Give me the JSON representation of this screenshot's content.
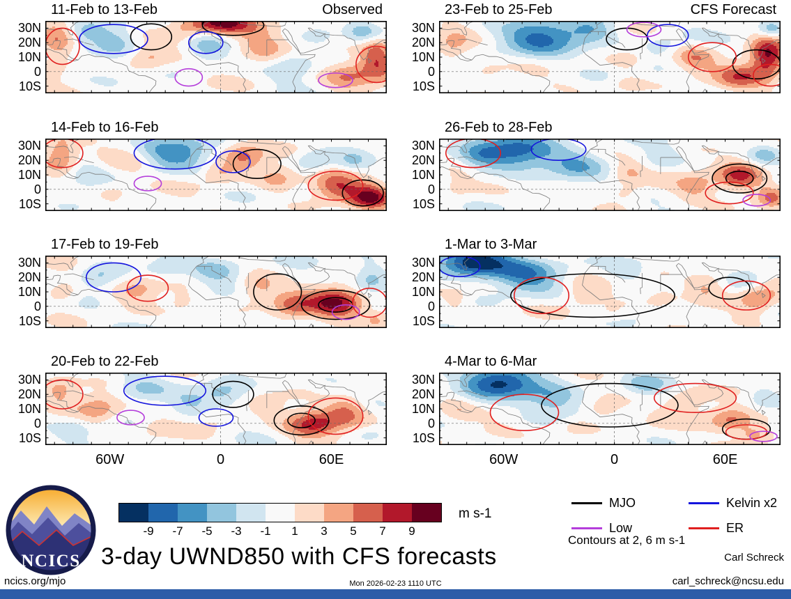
{
  "title": "3-day UWND850 with CFS forecasts",
  "branding": {
    "logo_text": "NCICS",
    "site": "ncics.org/mjo"
  },
  "footer": {
    "left": "ncics.org/mjo",
    "center": "Mon 2026-02-23 1110 UTC",
    "credit_name": "Carl Schreck",
    "credit_email": "carl_schreck@ncsu.edu"
  },
  "notes": {
    "contours": "Contours at 2, 6 m s-1"
  },
  "legend": {
    "items": [
      {
        "label": "MJO",
        "color": "#000000"
      },
      {
        "label": "Kelvin x2",
        "color": "#1414dd"
      },
      {
        "label": "Low",
        "color": "#b43ddb"
      },
      {
        "label": "ER",
        "color": "#e01f1f"
      }
    ]
  },
  "chart_data": {
    "type": "heatmap",
    "title": "3-day UWND850 with CFS forecasts",
    "subtitle_columns": [
      "Observed",
      "CFS Forecast"
    ],
    "axes": {
      "lat_labels": [
        "30N",
        "20N",
        "10N",
        "0",
        "10S"
      ],
      "lat_values": [
        30,
        20,
        10,
        0,
        -10
      ],
      "lon_labels": [
        "60W",
        "0",
        "60E"
      ],
      "lon_values": [
        -60,
        0,
        60
      ],
      "lat_range": [
        -15,
        35
      ],
      "lon_range": [
        -95,
        90
      ]
    },
    "colorbar": {
      "units": "m s-1",
      "levels": [
        -9,
        -7,
        -5,
        -3,
        -1,
        1,
        3,
        5,
        7,
        9
      ],
      "colors": [
        "#053061",
        "#2166ac",
        "#4393c3",
        "#92c5de",
        "#d1e5f0",
        "#f9f9f9",
        "#fddbc7",
        "#f4a582",
        "#d6604d",
        "#b2182b",
        "#67001f"
      ]
    },
    "contour_colors": {
      "M": "#000000",
      "K": "#1414dd",
      "L": "#b43ddb",
      "E": "#e01f1f"
    },
    "columns": [
      {
        "header": "Observed"
      },
      {
        "header": "CFS Forecast"
      }
    ],
    "panels": [
      {
        "title": "11-Feb to 13-Feb",
        "col": 0,
        "row": 0,
        "seed": 1.3,
        "blobs": [
          [
            0.03,
            0.3,
            0.05,
            0.3,
            5
          ],
          [
            0.12,
            0.15,
            0.05,
            0.15,
            -3
          ],
          [
            0.2,
            0.3,
            0.07,
            0.25,
            -4
          ],
          [
            0.3,
            0.5,
            0.06,
            0.2,
            3
          ],
          [
            0.4,
            0.15,
            0.06,
            0.2,
            2
          ],
          [
            0.52,
            0.02,
            0.1,
            0.15,
            9
          ],
          [
            0.47,
            0.35,
            0.05,
            0.2,
            -3
          ],
          [
            0.63,
            0.3,
            0.07,
            0.25,
            4
          ],
          [
            0.72,
            0.6,
            0.06,
            0.2,
            -3
          ],
          [
            0.8,
            0.2,
            0.05,
            0.15,
            -2
          ],
          [
            0.88,
            0.75,
            0.07,
            0.2,
            5
          ],
          [
            0.97,
            0.5,
            0.05,
            0.3,
            7
          ],
          [
            0.93,
            0.15,
            0.05,
            0.15,
            -4
          ]
        ],
        "contours": [
          [
            "M",
            0.31,
            0.22,
            0.06,
            0.18
          ],
          [
            "M",
            0.55,
            0.06,
            0.09,
            0.14
          ],
          [
            "K",
            0.2,
            0.25,
            0.1,
            0.2
          ],
          [
            "K",
            0.47,
            0.3,
            0.05,
            0.15
          ],
          [
            "E",
            0.05,
            0.35,
            0.05,
            0.25
          ],
          [
            "E",
            0.97,
            0.6,
            0.06,
            0.25
          ],
          [
            "L",
            0.42,
            0.78,
            0.04,
            0.12
          ],
          [
            "L",
            0.85,
            0.82,
            0.05,
            0.1
          ]
        ]
      },
      {
        "title": "14-Feb to 16-Feb",
        "col": 0,
        "row": 1,
        "seed": 2.7,
        "blobs": [
          [
            0.04,
            0.2,
            0.05,
            0.25,
            5
          ],
          [
            0.12,
            0.45,
            0.05,
            0.2,
            -2
          ],
          [
            0.25,
            0.3,
            0.06,
            0.2,
            2
          ],
          [
            0.38,
            0.18,
            0.1,
            0.22,
            -6
          ],
          [
            0.5,
            0.45,
            0.05,
            0.15,
            3
          ],
          [
            0.58,
            0.25,
            0.06,
            0.2,
            5
          ],
          [
            0.68,
            0.55,
            0.06,
            0.2,
            4
          ],
          [
            0.78,
            0.3,
            0.05,
            0.15,
            -3
          ],
          [
            0.85,
            0.65,
            0.07,
            0.2,
            6
          ],
          [
            0.95,
            0.8,
            0.06,
            0.18,
            9
          ],
          [
            0.9,
            0.3,
            0.04,
            0.15,
            -2
          ],
          [
            0.2,
            0.75,
            0.05,
            0.15,
            2
          ]
        ],
        "contours": [
          [
            "M",
            0.62,
            0.35,
            0.07,
            0.2
          ],
          [
            "M",
            0.93,
            0.75,
            0.06,
            0.18
          ],
          [
            "K",
            0.38,
            0.2,
            0.12,
            0.22
          ],
          [
            "K",
            0.55,
            0.32,
            0.05,
            0.15
          ],
          [
            "E",
            0.05,
            0.2,
            0.06,
            0.2
          ],
          [
            "E",
            0.85,
            0.65,
            0.08,
            0.2
          ],
          [
            "L",
            0.3,
            0.62,
            0.04,
            0.1
          ]
        ]
      },
      {
        "title": "17-Feb to 19-Feb",
        "col": 0,
        "row": 2,
        "seed": 4.1,
        "blobs": [
          [
            0.05,
            0.5,
            0.05,
            0.2,
            3
          ],
          [
            0.15,
            0.3,
            0.06,
            0.2,
            -3
          ],
          [
            0.27,
            0.45,
            0.06,
            0.2,
            3
          ],
          [
            0.4,
            0.6,
            0.05,
            0.15,
            2
          ],
          [
            0.5,
            0.2,
            0.08,
            0.2,
            -4
          ],
          [
            0.62,
            0.45,
            0.06,
            0.2,
            4
          ],
          [
            0.72,
            0.7,
            0.06,
            0.2,
            5
          ],
          [
            0.85,
            0.65,
            0.08,
            0.22,
            9
          ],
          [
            0.95,
            0.3,
            0.05,
            0.2,
            -4
          ],
          [
            0.35,
            0.15,
            0.05,
            0.15,
            -2
          ],
          [
            0.97,
            0.85,
            0.04,
            0.12,
            3
          ]
        ],
        "contours": [
          [
            "M",
            0.68,
            0.5,
            0.07,
            0.25
          ],
          [
            "M",
            0.85,
            0.68,
            0.1,
            0.2,
            1
          ],
          [
            "K",
            0.2,
            0.3,
            0.08,
            0.2
          ],
          [
            "E",
            0.3,
            0.45,
            0.06,
            0.18
          ],
          [
            "E",
            0.95,
            0.65,
            0.05,
            0.2
          ],
          [
            "L",
            0.88,
            0.78,
            0.04,
            0.1
          ]
        ]
      },
      {
        "title": "20-Feb to 22-Feb",
        "col": 0,
        "row": 3,
        "seed": 5.9,
        "blobs": [
          [
            0.04,
            0.25,
            0.05,
            0.2,
            4
          ],
          [
            0.15,
            0.5,
            0.06,
            0.2,
            4
          ],
          [
            0.28,
            0.2,
            0.07,
            0.2,
            -3
          ],
          [
            0.42,
            0.4,
            0.05,
            0.15,
            -2
          ],
          [
            0.52,
            0.3,
            0.07,
            0.2,
            -4
          ],
          [
            0.5,
            0.6,
            0.05,
            0.15,
            2
          ],
          [
            0.65,
            0.45,
            0.05,
            0.15,
            2
          ],
          [
            0.78,
            0.7,
            0.08,
            0.2,
            8
          ],
          [
            0.88,
            0.5,
            0.06,
            0.2,
            5
          ],
          [
            0.95,
            0.85,
            0.05,
            0.12,
            -2
          ],
          [
            0.33,
            0.75,
            0.05,
            0.12,
            2
          ],
          [
            0.08,
            0.8,
            0.05,
            0.15,
            -2
          ]
        ],
        "contours": [
          [
            "M",
            0.75,
            0.66,
            0.08,
            0.2,
            1
          ],
          [
            "M",
            0.55,
            0.3,
            0.06,
            0.18
          ],
          [
            "K",
            0.35,
            0.25,
            0.12,
            0.2
          ],
          [
            "K",
            0.5,
            0.62,
            0.05,
            0.12
          ],
          [
            "E",
            0.05,
            0.3,
            0.06,
            0.2
          ],
          [
            "E",
            0.85,
            0.6,
            0.08,
            0.25
          ],
          [
            "L",
            0.25,
            0.62,
            0.04,
            0.1
          ]
        ]
      },
      {
        "title": "23-Feb to 25-Feb",
        "col": 1,
        "row": 0,
        "seed": 7.2,
        "blobs": [
          [
            0.04,
            0.35,
            0.05,
            0.25,
            3
          ],
          [
            0.14,
            0.7,
            0.05,
            0.15,
            2
          ],
          [
            0.3,
            0.22,
            0.12,
            0.25,
            -7
          ],
          [
            0.45,
            0.12,
            0.07,
            0.18,
            -4
          ],
          [
            0.55,
            0.55,
            0.05,
            0.15,
            2
          ],
          [
            0.65,
            0.35,
            0.05,
            0.15,
            -2
          ],
          [
            0.75,
            0.5,
            0.06,
            0.18,
            4
          ],
          [
            0.88,
            0.75,
            0.07,
            0.18,
            6
          ],
          [
            0.96,
            0.5,
            0.05,
            0.3,
            9
          ],
          [
            0.97,
            0.1,
            0.04,
            0.12,
            -5
          ],
          [
            0.55,
            0.85,
            0.05,
            0.12,
            2
          ]
        ],
        "contours": [
          [
            "M",
            0.55,
            0.25,
            0.06,
            0.15
          ],
          [
            "M",
            0.93,
            0.6,
            0.07,
            0.2
          ],
          [
            "K",
            0.67,
            0.2,
            0.06,
            0.15
          ],
          [
            "E",
            0.8,
            0.5,
            0.07,
            0.2
          ],
          [
            "E",
            0.97,
            0.75,
            0.05,
            0.15
          ],
          [
            "L",
            0.6,
            0.12,
            0.05,
            0.1
          ]
        ]
      },
      {
        "title": "26-Feb to 28-Feb",
        "col": 1,
        "row": 1,
        "seed": 8.8,
        "blobs": [
          [
            0.22,
            0.18,
            0.13,
            0.25,
            -8
          ],
          [
            0.4,
            0.35,
            0.08,
            0.2,
            -4
          ],
          [
            0.05,
            0.6,
            0.05,
            0.2,
            2
          ],
          [
            0.12,
            0.25,
            0.05,
            0.15,
            -2
          ],
          [
            0.55,
            0.45,
            0.05,
            0.15,
            3
          ],
          [
            0.65,
            0.25,
            0.05,
            0.15,
            -2
          ],
          [
            0.75,
            0.65,
            0.06,
            0.18,
            4
          ],
          [
            0.88,
            0.5,
            0.07,
            0.2,
            8
          ],
          [
            0.95,
            0.2,
            0.05,
            0.15,
            -4
          ],
          [
            0.55,
            0.75,
            0.05,
            0.12,
            2
          ],
          [
            0.97,
            0.8,
            0.04,
            0.15,
            5
          ]
        ],
        "contours": [
          [
            "M",
            0.88,
            0.55,
            0.08,
            0.2,
            1
          ],
          [
            "K",
            0.35,
            0.15,
            0.08,
            0.15
          ],
          [
            "E",
            0.1,
            0.2,
            0.08,
            0.2
          ],
          [
            "E",
            0.85,
            0.75,
            0.07,
            0.15
          ],
          [
            "L",
            0.93,
            0.85,
            0.04,
            0.08
          ]
        ]
      },
      {
        "title": "1-Mar to 3-Mar",
        "col": 1,
        "row": 2,
        "seed": 10.4,
        "blobs": [
          [
            0.1,
            0.08,
            0.1,
            0.2,
            -11
          ],
          [
            0.25,
            0.25,
            0.1,
            0.25,
            -6
          ],
          [
            0.42,
            0.5,
            0.06,
            0.18,
            3
          ],
          [
            0.55,
            0.2,
            0.06,
            0.15,
            -3
          ],
          [
            0.65,
            0.55,
            0.05,
            0.15,
            2
          ],
          [
            0.78,
            0.4,
            0.06,
            0.18,
            4
          ],
          [
            0.9,
            0.3,
            0.05,
            0.15,
            -3
          ],
          [
            0.93,
            0.6,
            0.06,
            0.2,
            5
          ],
          [
            0.5,
            0.8,
            0.05,
            0.12,
            2
          ],
          [
            0.05,
            0.6,
            0.04,
            0.15,
            2
          ]
        ],
        "contours": [
          [
            "M",
            0.45,
            0.55,
            0.24,
            0.3
          ],
          [
            "M",
            0.85,
            0.45,
            0.06,
            0.15
          ],
          [
            "K",
            0.06,
            0.15,
            0.06,
            0.14
          ],
          [
            "E",
            0.3,
            0.55,
            0.08,
            0.25
          ],
          [
            "E",
            0.9,
            0.55,
            0.07,
            0.2
          ]
        ]
      },
      {
        "title": "4-Mar to 6-Mar",
        "col": 1,
        "row": 3,
        "seed": 12.1,
        "blobs": [
          [
            0.18,
            0.12,
            0.11,
            0.22,
            -9
          ],
          [
            0.33,
            0.35,
            0.08,
            0.2,
            -5
          ],
          [
            0.05,
            0.5,
            0.05,
            0.2,
            2
          ],
          [
            0.48,
            0.5,
            0.06,
            0.15,
            3
          ],
          [
            0.6,
            0.15,
            0.06,
            0.15,
            -3
          ],
          [
            0.72,
            0.4,
            0.06,
            0.18,
            3
          ],
          [
            0.85,
            0.65,
            0.07,
            0.18,
            6
          ],
          [
            0.95,
            0.3,
            0.04,
            0.15,
            -2
          ],
          [
            0.92,
            0.85,
            0.05,
            0.12,
            4
          ],
          [
            0.4,
            0.75,
            0.05,
            0.12,
            2
          ]
        ],
        "contours": [
          [
            "M",
            0.5,
            0.45,
            0.2,
            0.3
          ],
          [
            "M",
            0.9,
            0.78,
            0.07,
            0.14
          ],
          [
            "E",
            0.25,
            0.55,
            0.1,
            0.25
          ],
          [
            "E",
            0.75,
            0.35,
            0.12,
            0.2
          ],
          [
            "E",
            0.9,
            0.82,
            0.06,
            0.1
          ],
          [
            "L",
            0.95,
            0.88,
            0.04,
            0.07
          ]
        ]
      }
    ]
  }
}
